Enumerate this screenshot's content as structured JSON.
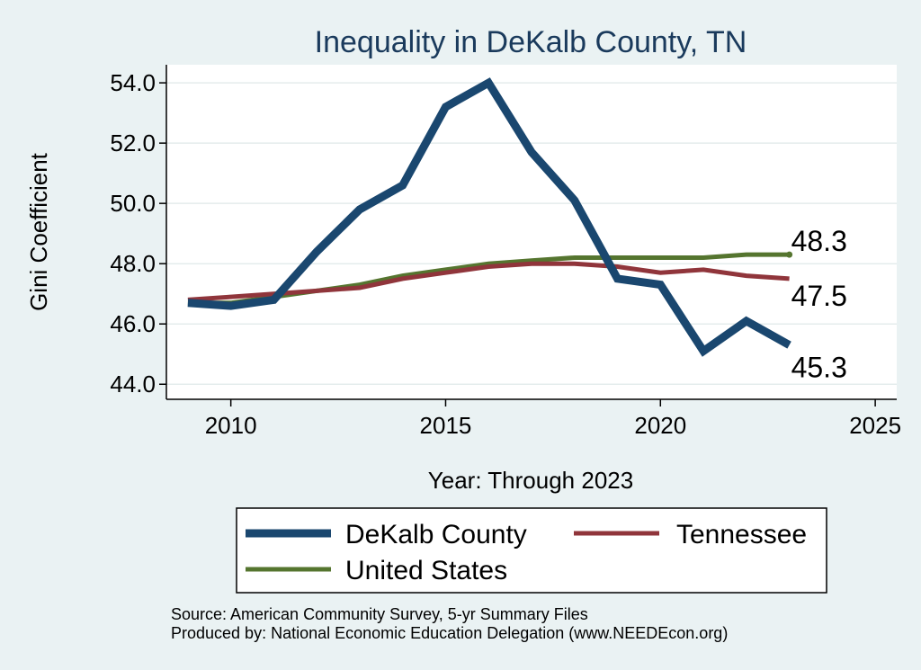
{
  "chart_data": {
    "type": "line",
    "title": "Inequality in DeKalb County, TN",
    "xlabel": "Year: Through 2023",
    "ylabel": "Gini Coefficient",
    "xlim": [
      2008.5,
      2025.5
    ],
    "ylim": [
      43.5,
      54.6
    ],
    "x_ticks": [
      "2010",
      "2015",
      "2020",
      "2025"
    ],
    "y_ticks": [
      "44.0",
      "46.0",
      "48.0",
      "50.0",
      "52.0",
      "54.0"
    ],
    "grid": true,
    "legend_position": "bottom",
    "x": [
      2009,
      2010,
      2011,
      2012,
      2013,
      2014,
      2015,
      2016,
      2017,
      2018,
      2019,
      2020,
      2021,
      2022,
      2023
    ],
    "series": [
      {
        "name": "DeKalb County",
        "color": "#1a476f",
        "values": [
          46.7,
          46.6,
          46.8,
          48.4,
          49.8,
          50.6,
          53.2,
          54.0,
          51.7,
          50.1,
          47.5,
          47.3,
          45.1,
          46.1,
          45.3
        ],
        "end_label": "45.3"
      },
      {
        "name": "Tennessee",
        "color": "#90353b",
        "values": [
          46.8,
          46.9,
          47.0,
          47.1,
          47.2,
          47.5,
          47.7,
          47.9,
          48.0,
          48.0,
          47.9,
          47.7,
          47.8,
          47.6,
          47.5
        ],
        "end_label": "47.5"
      },
      {
        "name": "United States",
        "color": "#55752f",
        "values": [
          46.7,
          46.7,
          46.9,
          47.1,
          47.3,
          47.6,
          47.8,
          48.0,
          48.1,
          48.2,
          48.2,
          48.2,
          48.2,
          48.3,
          48.3
        ],
        "end_label": "48.3"
      }
    ]
  },
  "source": {
    "line1": "Source: American Community Survey, 5-yr Summary Files",
    "line2": "Produced by: National Economic Education Delegation (www.NEEDEcon.org)"
  }
}
